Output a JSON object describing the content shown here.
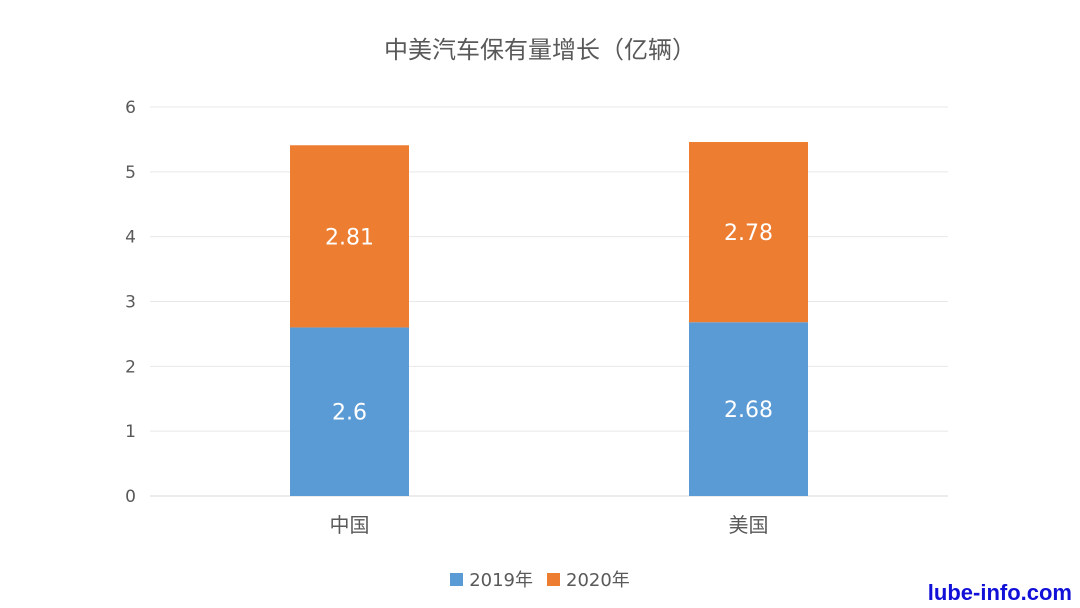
{
  "chart_data": {
    "type": "bar",
    "stacked": true,
    "title": "中美汽车保有量增长（亿辆）",
    "categories": [
      "中国",
      "美国"
    ],
    "series": [
      {
        "name": "2019年",
        "values": [
          2.6,
          2.68
        ],
        "color": "#5b9bd5"
      },
      {
        "name": "2020年",
        "values": [
          2.81,
          2.78
        ],
        "color": "#ed7d31"
      }
    ],
    "ylim": [
      0,
      6
    ],
    "yticks": [
      "0",
      "1",
      "2",
      "3",
      "4",
      "5",
      "6"
    ],
    "grid": true,
    "legend_position": "bottom",
    "data_labels": true
  },
  "watermark": "lube-info.com"
}
